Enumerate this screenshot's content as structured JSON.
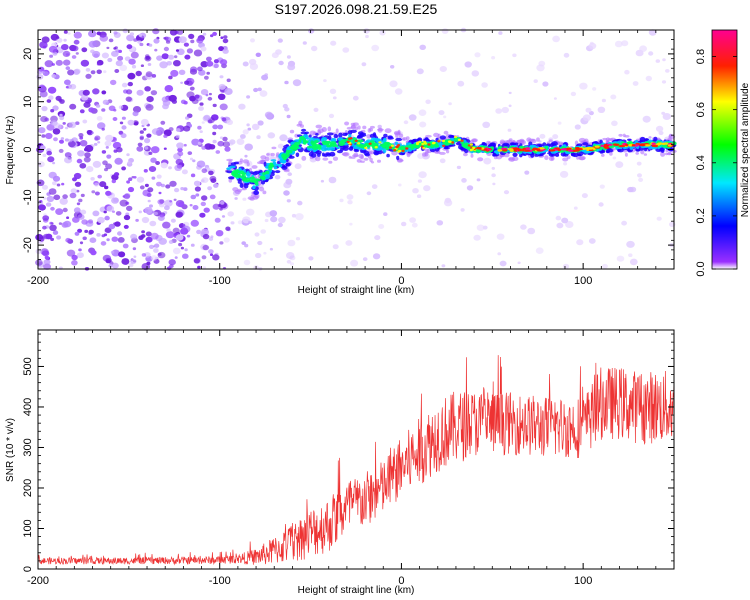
{
  "title": "S197.2026.098.21.59.E25",
  "colors": {
    "snr_line": "#ee3333",
    "spectrogram_bg": "#ffffff",
    "colorbar": [
      "#ffffff",
      "#8000ff",
      "#0000ff",
      "#00ffff",
      "#00ff00",
      "#ffff00",
      "#ff0000",
      "#ff0080"
    ]
  },
  "chart_data": [
    {
      "type": "heatmap",
      "id": "spectrogram",
      "xlabel": "Height of straight line (km)",
      "ylabel": "Frequency (Hz)",
      "xlim": [
        -200,
        150
      ],
      "ylim": [
        -25,
        25
      ],
      "xticks": [
        -200,
        -100,
        0,
        100
      ],
      "xtick_labels": [
        "-200",
        "-100",
        "0",
        "100"
      ],
      "yticks": [
        -20,
        -10,
        0,
        10,
        20
      ],
      "ytick_labels": [
        "-20",
        "-10",
        "0",
        "10",
        "20"
      ],
      "ridge": {
        "x": [
          -95,
          -90,
          -85,
          -80,
          -75,
          -70,
          -65,
          -60,
          -55,
          -50,
          -45,
          -40,
          -30,
          -20,
          -10,
          0,
          10,
          20,
          30,
          40,
          60,
          80,
          100,
          120,
          150
        ],
        "freq": [
          -4,
          -5,
          -6,
          -7,
          -5,
          -3,
          -2,
          0,
          2,
          1,
          1,
          1,
          2,
          1,
          1,
          0,
          1,
          1,
          2,
          0,
          0,
          0,
          0,
          1,
          1
        ]
      },
      "colorbar": {
        "label": "Normalized spectral amplitude",
        "range": [
          0,
          0.9
        ],
        "ticks": [
          0.0,
          0.2,
          0.4,
          0.6,
          0.8
        ],
        "tick_labels": [
          "0.0",
          "0.2",
          "0.4",
          "0.6",
          "0.8"
        ]
      }
    },
    {
      "type": "line",
      "id": "snr",
      "xlabel": "Height of straight line (km)",
      "ylabel": "SNR (10 * v/v)",
      "xlim": [
        -200,
        150
      ],
      "ylim": [
        0,
        590
      ],
      "xticks": [
        -200,
        -100,
        0,
        100
      ],
      "xtick_labels": [
        "-200",
        "-100",
        "0",
        "100"
      ],
      "yticks": [
        0,
        100,
        200,
        300,
        400,
        500
      ],
      "ytick_labels": [
        "0",
        "100",
        "200",
        "300",
        "400",
        "500"
      ],
      "series": [
        {
          "name": "SNR",
          "envelope_x": [
            -200,
            -150,
            -100,
            -90,
            -80,
            -70,
            -60,
            -50,
            -40,
            -30,
            -20,
            -10,
            0,
            10,
            20,
            30,
            40,
            60,
            80,
            100,
            105,
            110,
            120,
            130,
            150
          ],
          "envelope_mean": [
            20,
            20,
            22,
            25,
            30,
            45,
            65,
            90,
            110,
            150,
            170,
            200,
            250,
            290,
            330,
            350,
            360,
            360,
            350,
            350,
            380,
            410,
            410,
            400,
            400
          ],
          "envelope_spread": [
            12,
            12,
            14,
            16,
            30,
            50,
            70,
            90,
            100,
            100,
            100,
            100,
            110,
            120,
            130,
            130,
            120,
            110,
            110,
            110,
            120,
            130,
            130,
            130,
            130
          ]
        }
      ]
    }
  ]
}
